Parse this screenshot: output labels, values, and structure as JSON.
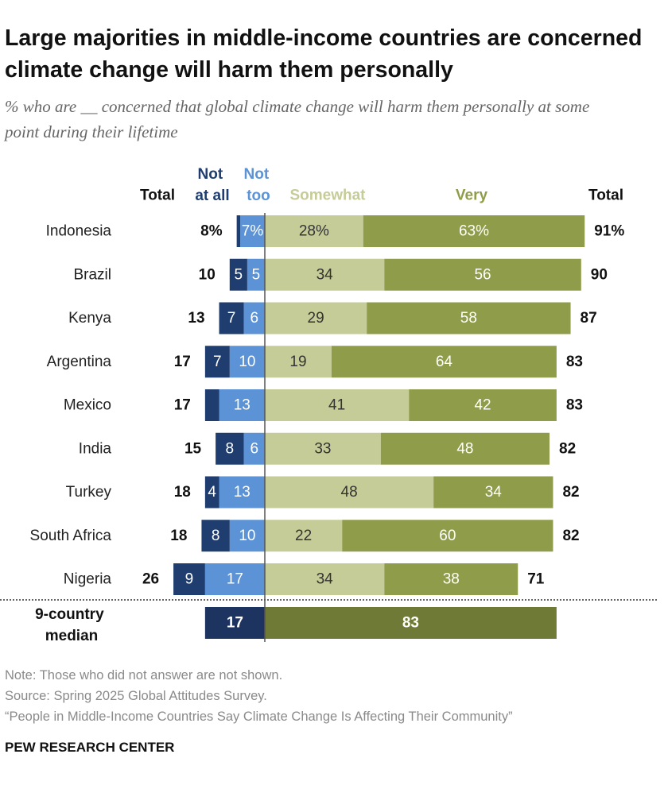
{
  "chart_data": {
    "type": "diverging-bar",
    "title": "Large majorities in middle-income countries are concerned climate change will harm them personally",
    "subtitle": "% who are __ concerned that global climate change will harm them personally at some point during their lifetime",
    "categories": [
      "Indonesia",
      "Brazil",
      "Kenya",
      "Argentina",
      "Mexico",
      "India",
      "Turkey",
      "South Africa",
      "Nigeria"
    ],
    "series": [
      {
        "name": "Not at all",
        "side": "left",
        "color": "#1f3d6e",
        "text_color": "#ffffff",
        "values": [
          1,
          5,
          7,
          7,
          4,
          8,
          4,
          8,
          9
        ],
        "value_labels": [
          null,
          "5",
          "7",
          "7",
          null,
          "8",
          "4",
          "8",
          "9"
        ]
      },
      {
        "name": "Not too",
        "side": "left",
        "color": "#5b93d6",
        "text_color": "#ffffff",
        "values": [
          7,
          5,
          6,
          10,
          13,
          6,
          13,
          10,
          17
        ],
        "value_labels": [
          "7%",
          "5",
          "6",
          "10",
          "13",
          "6",
          "13",
          "10",
          "17"
        ]
      },
      {
        "name": "Somewhat",
        "side": "right",
        "color": "#c6cc97",
        "text_color": "#333333",
        "values": [
          28,
          34,
          29,
          19,
          41,
          33,
          48,
          22,
          34
        ],
        "value_labels": [
          "28%",
          "34",
          "29",
          "19",
          "41",
          "33",
          "48",
          "22",
          "34"
        ]
      },
      {
        "name": "Very",
        "side": "right",
        "color": "#8f9c49",
        "text_color": "#ffffff",
        "values": [
          63,
          56,
          58,
          64,
          42,
          48,
          34,
          60,
          38
        ],
        "value_labels": [
          "63%",
          "56",
          "58",
          "64",
          "42",
          "48",
          "34",
          "60",
          "38"
        ]
      }
    ],
    "totals": [
      {
        "name": "Total",
        "side": "left",
        "values": [
          8,
          10,
          13,
          17,
          17,
          15,
          18,
          18,
          26
        ],
        "value_labels": [
          "8%",
          "10",
          "13",
          "17",
          "17",
          "15",
          "18",
          "18",
          "26"
        ]
      },
      {
        "name": "Total",
        "side": "right",
        "values": [
          91,
          90,
          87,
          83,
          83,
          82,
          82,
          82,
          71
        ],
        "value_labels": [
          "91%",
          "90",
          "87",
          "83",
          "83",
          "82",
          "82",
          "82",
          "71"
        ]
      }
    ],
    "median": {
      "label": "9-country median",
      "values": [
        17,
        83
      ],
      "colors": [
        "#1d3461",
        "#6e7a36"
      ]
    },
    "notes": [
      "Note: Those who did not answer are not shown.",
      "Source: Spring 2025 Global Attitudes Survey.",
      "“People in Middle-Income Countries Say Climate Change Is Affecting Their Community”"
    ],
    "brand": "PEW RESEARCH CENTER"
  }
}
